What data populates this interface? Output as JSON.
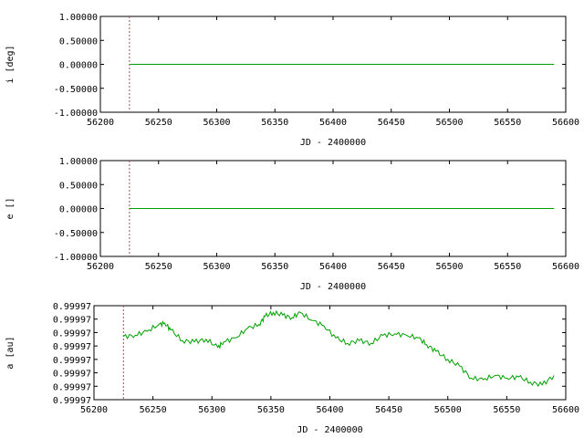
{
  "chart_data": [
    {
      "type": "line",
      "xlabel": "JD - 2400000",
      "ylabel": "i [deg]",
      "xlim": [
        56200,
        56600
      ],
      "ylim": [
        -1.0,
        1.0
      ],
      "xticks": [
        "56200",
        "56250",
        "56300",
        "56350",
        "56400",
        "56450",
        "56500",
        "56550",
        "56600"
      ],
      "yticks": [
        "-1.00000",
        "-0.50000",
        "0.00000",
        "0.50000",
        "1.00000"
      ],
      "marker_x": 56225,
      "series": [
        {
          "x": [
            56225,
            56590
          ],
          "y": [
            0.0,
            0.0
          ],
          "color": "#00a000"
        }
      ]
    },
    {
      "type": "line",
      "xlabel": "JD - 2400000",
      "ylabel": "e []",
      "xlim": [
        56200,
        56600
      ],
      "ylim": [
        -1.0,
        1.0
      ],
      "xticks": [
        "56200",
        "56250",
        "56300",
        "56350",
        "56400",
        "56450",
        "56500",
        "56550",
        "56600"
      ],
      "yticks": [
        "-1.00000",
        "-0.50000",
        "0.00000",
        "0.50000",
        "1.00000"
      ],
      "marker_x": 56225,
      "series": [
        {
          "x": [
            56225,
            56590
          ],
          "y": [
            0.0,
            0.0
          ],
          "color": "#00a000"
        }
      ]
    },
    {
      "type": "line",
      "xlabel": "JD - 2400000",
      "ylabel": "a [au]",
      "xlim": [
        56200,
        56600
      ],
      "ylim": [
        0,
        7
      ],
      "xticks": [
        "56200",
        "56250",
        "56300",
        "56350",
        "56400",
        "56450",
        "56500",
        "56550",
        "56600"
      ],
      "yticks": [
        "0.99997",
        "0.99997",
        "0.99997",
        "0.99997",
        "0.99997",
        "0.99997",
        "0.99997",
        "0.99997"
      ],
      "marker_x": 56225,
      "series": [
        {
          "color": "#00a000",
          "x": [
            56225,
            56235,
            56245,
            56255,
            56260,
            56265,
            56275,
            56285,
            56295,
            56305,
            56310,
            56320,
            56330,
            56340,
            56345,
            56352,
            56360,
            56368,
            56375,
            56385,
            56395,
            56405,
            56415,
            56425,
            56435,
            56445,
            56455,
            56465,
            56475,
            56482,
            56490,
            56500,
            56510,
            56520,
            56530,
            56540,
            56550,
            56560,
            56570,
            56580,
            56590
          ],
          "y": [
            4.7,
            4.8,
            5.1,
            5.6,
            5.7,
            5.2,
            4.4,
            4.3,
            4.5,
            3.9,
            4.3,
            4.6,
            5.3,
            5.6,
            6.2,
            6.5,
            6.3,
            6.1,
            6.5,
            5.9,
            5.5,
            4.6,
            4.2,
            4.4,
            4.2,
            4.8,
            4.9,
            4.8,
            4.6,
            4.1,
            3.6,
            3.0,
            2.5,
            1.6,
            1.5,
            1.8,
            1.6,
            1.7,
            1.3,
            1.1,
            1.8
          ]
        }
      ]
    }
  ]
}
